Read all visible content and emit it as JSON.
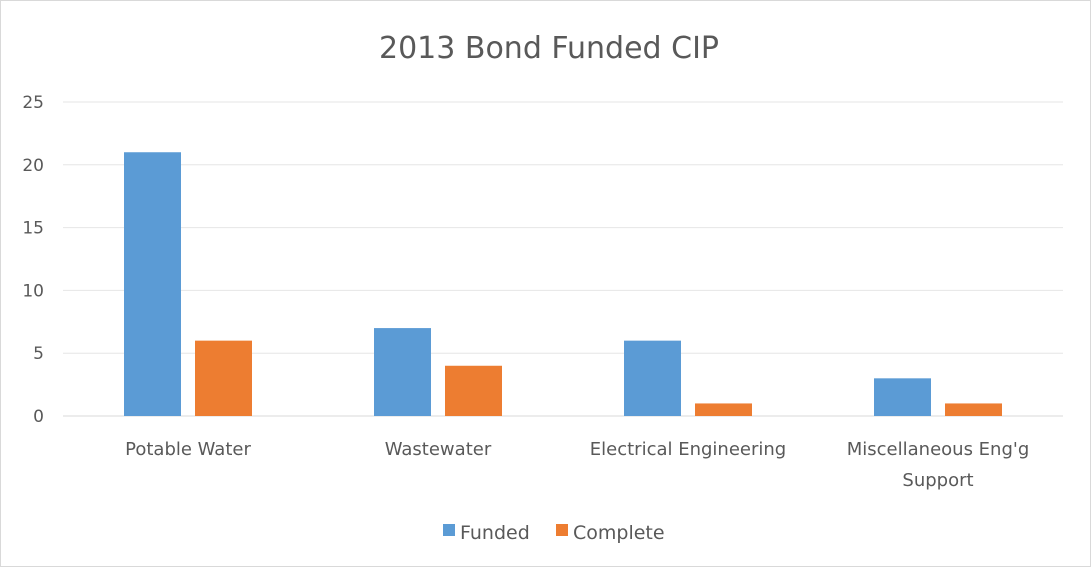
{
  "chart_data": {
    "type": "bar",
    "title": "2013 Bond Funded CIP",
    "categories": [
      [
        "Potable Water"
      ],
      [
        "Wastewater"
      ],
      [
        "Electrical Engineering"
      ],
      [
        "Miscellaneous Eng'g",
        "Support"
      ]
    ],
    "series": [
      {
        "name": "Funded",
        "values": [
          21,
          7,
          6,
          3
        ],
        "color": "#5b9bd5"
      },
      {
        "name": "Complete",
        "values": [
          6,
          4,
          1,
          1
        ],
        "color": "#ed7d31"
      }
    ],
    "y_ticks": [
      "0",
      "5",
      "10",
      "15",
      "20",
      "25"
    ],
    "ylim": [
      0,
      25
    ],
    "xlabel": "",
    "ylabel": "",
    "grid": true,
    "legend_position": "bottom"
  }
}
